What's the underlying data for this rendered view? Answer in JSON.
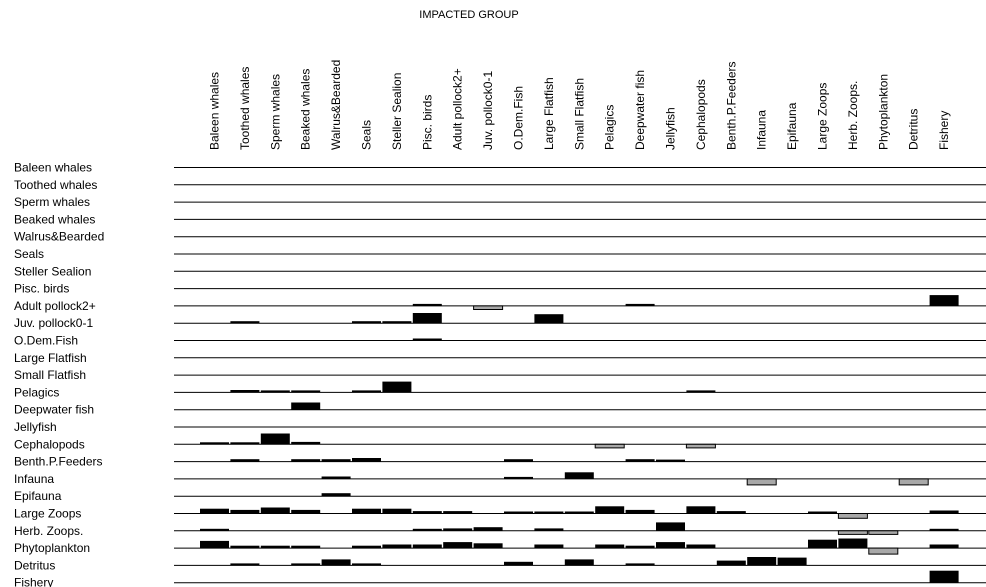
{
  "chart_data": {
    "type": "heatmap",
    "title": "IMPACTED GROUP",
    "columns": [
      "Baleen whales",
      "Toothed whales",
      "Sperm whales",
      "Beaked whales",
      "Walrus&Bearded",
      "Seals",
      "Steller Sealion",
      "Pisc. birds",
      "Adult pollock2+",
      "Juv. pollock0-1",
      "O.Dem.Fish",
      "Large Flatfish",
      "Small Flatfish",
      "Pelagics",
      "Deepwater fish",
      "Jellyfish",
      "Cephalopods",
      "Benth.P.Feeders",
      "Infauna",
      "Epifauna",
      "Large Zoops",
      "Herb. Zoops.",
      "Phytoplankton",
      "Detritus",
      "Fishery"
    ],
    "rows": [
      "Baleen whales",
      "Toothed whales",
      "Sperm whales",
      "Beaked whales",
      "Walrus&Bearded",
      "Seals",
      "Steller Sealion",
      "Pisc. birds",
      "Adult pollock2+",
      "Juv. pollock0-1",
      "O.Dem.Fish",
      "Large Flatfish",
      "Small Flatfish",
      "Pelagics",
      "Deepwater fish",
      "Jellyfish",
      "Cephalopods",
      "Benth.P.Feeders",
      "Infauna",
      "Epifauna",
      "Large Zoops",
      "Herb. Zoops.",
      "Phytoplankton",
      "Detritus",
      "Fishery"
    ],
    "value_range": [
      -1,
      1
    ],
    "positive_color": "#000000",
    "negative_color": "#a8a8a8",
    "values": [
      [
        0,
        0,
        0,
        0,
        0,
        0,
        0,
        0,
        0,
        0,
        0,
        0,
        0,
        0,
        0,
        0,
        0,
        0,
        0,
        0,
        0,
        0,
        0,
        0,
        0
      ],
      [
        0,
        0,
        0,
        0,
        0,
        0,
        0,
        0,
        0,
        0,
        0,
        0,
        0,
        0,
        0,
        0,
        0,
        0,
        0,
        0,
        0,
        0,
        0,
        0,
        0
      ],
      [
        0,
        0,
        0,
        0,
        0,
        0,
        0,
        0,
        0,
        0,
        0,
        0,
        0,
        0,
        0,
        0,
        0,
        0,
        0,
        0,
        0,
        0,
        0,
        0,
        0
      ],
      [
        0,
        0,
        0,
        0,
        0,
        0,
        0,
        0,
        0,
        0,
        0,
        0,
        0,
        0,
        0,
        0,
        0,
        0,
        0,
        0,
        0,
        0,
        0,
        0,
        0
      ],
      [
        0,
        0,
        0,
        0,
        0,
        0,
        0,
        0,
        0,
        0,
        0,
        0,
        0,
        0,
        0,
        0,
        0,
        0,
        0,
        0,
        0,
        0,
        0,
        0,
        0
      ],
      [
        0,
        0,
        0,
        0,
        0,
        0,
        0,
        0,
        0,
        0,
        0,
        0,
        0,
        0,
        0,
        0,
        0,
        0,
        0,
        0,
        0,
        0,
        0,
        0,
        0
      ],
      [
        0,
        0,
        0,
        0,
        0,
        0,
        0,
        0,
        0,
        0,
        0,
        0,
        0,
        0,
        0,
        0,
        0,
        0,
        0,
        0,
        0,
        0,
        0,
        0,
        0
      ],
      [
        0,
        0,
        0,
        0,
        0,
        0,
        0,
        0,
        0,
        0,
        0,
        0,
        0,
        0,
        0,
        0,
        0,
        0,
        0,
        0,
        0,
        0,
        0,
        0,
        0
      ],
      [
        0,
        0,
        0,
        0,
        0,
        0,
        0,
        0.15,
        0,
        -0.3,
        0,
        0,
        0,
        0,
        0.1,
        0,
        0,
        0,
        0,
        0,
        0,
        0,
        0,
        0,
        0.9
      ],
      [
        0,
        0.1,
        0,
        0,
        0,
        0.1,
        0.1,
        0.85,
        0,
        0,
        0,
        0.75,
        0,
        0,
        0,
        0,
        0,
        0,
        0,
        0,
        0,
        0,
        0,
        0,
        0
      ],
      [
        0,
        0,
        0,
        0,
        0,
        0,
        0,
        0.12,
        0,
        0,
        0,
        0,
        0,
        0,
        0,
        0,
        0,
        0,
        0,
        0,
        0,
        0,
        0,
        0,
        0
      ],
      [
        0,
        0,
        0,
        0,
        0,
        0,
        0,
        0,
        0,
        0,
        0,
        0,
        0,
        0,
        0,
        0,
        0,
        0,
        0,
        0,
        0,
        0,
        0,
        0,
        0
      ],
      [
        0,
        0,
        0,
        0,
        0,
        0,
        0,
        0,
        0,
        0,
        0,
        0,
        0,
        0,
        0,
        0,
        0,
        0,
        0,
        0,
        0,
        0,
        0,
        0,
        0
      ],
      [
        0,
        0.2,
        0.1,
        0.1,
        0,
        0.1,
        0.9,
        0,
        0,
        0,
        0,
        0,
        0,
        0,
        0,
        0,
        0.1,
        0,
        0,
        0,
        0,
        0,
        0,
        0,
        0
      ],
      [
        0,
        0,
        0,
        0.6,
        0,
        0,
        0,
        0,
        0,
        0,
        0,
        0,
        0,
        0,
        0,
        0,
        0,
        0,
        0,
        0,
        0,
        0,
        0,
        0,
        0
      ],
      [
        0,
        0,
        0,
        0,
        0,
        0,
        0,
        0,
        0,
        0,
        0,
        0,
        0,
        0,
        0,
        0,
        0,
        0,
        0,
        0,
        0,
        0,
        0,
        0,
        0
      ],
      [
        0.1,
        0.1,
        0.9,
        0.2,
        0,
        0,
        0,
        0,
        0,
        0,
        0,
        0,
        0,
        -0.3,
        0,
        0,
        -0.3,
        0,
        0,
        0,
        0,
        0,
        0,
        0,
        0
      ],
      [
        0,
        0.2,
        0,
        0.2,
        0.2,
        0.3,
        0,
        0,
        0,
        0,
        0.2,
        0,
        0,
        0,
        0.2,
        0.1,
        0,
        0,
        0,
        0,
        0,
        0,
        0,
        0,
        0
      ],
      [
        0,
        0,
        0,
        0,
        0.2,
        0,
        0,
        0,
        0,
        0,
        0.1,
        0,
        0.55,
        0,
        0,
        0,
        0,
        0,
        -0.5,
        0,
        0,
        0,
        0,
        -0.5,
        0
      ],
      [
        0,
        0,
        0,
        0,
        0.25,
        0,
        0,
        0,
        0,
        0,
        0,
        0,
        0,
        0,
        0,
        0,
        0,
        0,
        0,
        0,
        0,
        0,
        0,
        0,
        0
      ],
      [
        0.4,
        0.3,
        0.5,
        0.3,
        0,
        0.4,
        0.4,
        0.2,
        0.2,
        0,
        0.1,
        0.1,
        0.1,
        0.6,
        0.3,
        0,
        0.6,
        0.2,
        0,
        0,
        0.1,
        -0.4,
        0,
        0,
        0.25
      ],
      [
        0.1,
        0,
        0,
        0,
        0,
        0,
        0,
        0.1,
        0.2,
        0.3,
        0,
        0.2,
        0,
        0,
        0,
        0.7,
        0,
        0,
        0,
        0,
        0,
        -0.3,
        -0.3,
        0,
        0.1
      ],
      [
        0.6,
        0.2,
        0.2,
        0.2,
        0,
        0.2,
        0.3,
        0.3,
        0.5,
        0.4,
        0,
        0.3,
        0,
        0.3,
        0.2,
        0.5,
        0.3,
        0,
        0,
        0,
        0.7,
        0.8,
        -0.5,
        0,
        0.3
      ],
      [
        0,
        0.1,
        0,
        0.1,
        0.5,
        0.1,
        0,
        0,
        0,
        0,
        0.3,
        0,
        0.5,
        0,
        0.1,
        0,
        0,
        0.4,
        0.7,
        0.65,
        0,
        0,
        0,
        0,
        0
      ],
      [
        0,
        0,
        0,
        0,
        0,
        0,
        0,
        0,
        0,
        0,
        0,
        0,
        0,
        0,
        0,
        0,
        0,
        0,
        0,
        0,
        0,
        0,
        0,
        0,
        1.0
      ]
    ]
  }
}
